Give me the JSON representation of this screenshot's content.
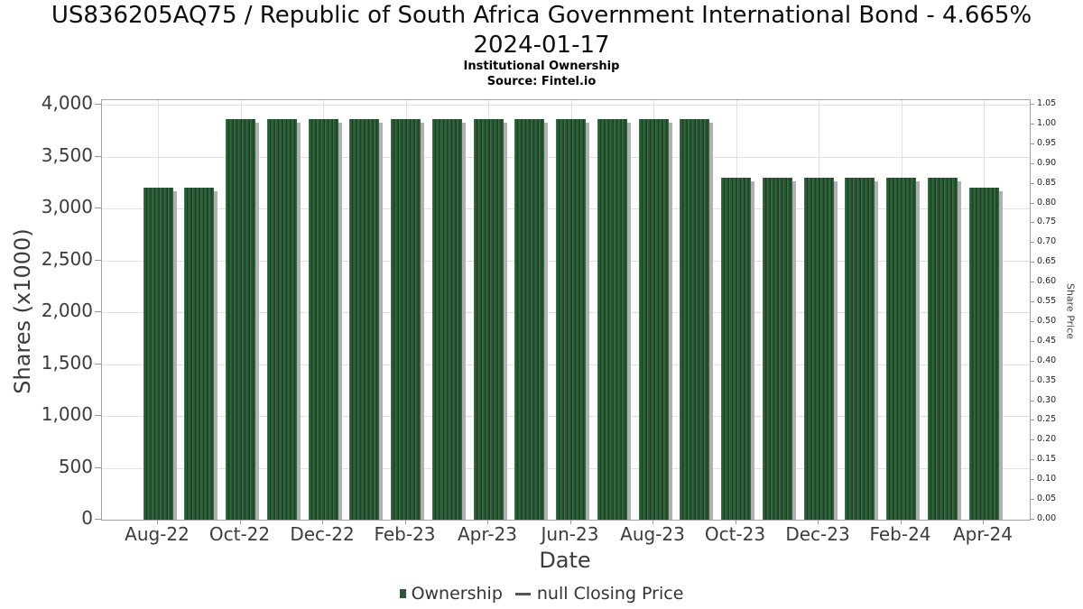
{
  "page": {
    "title_line1": "US836205AQ75 / Republic of South Africa Government International Bond - 4.665%",
    "title_line2": "2024-01-17",
    "subtitle": "Institutional Ownership",
    "source": "Source: Fintel.io"
  },
  "chart_data": {
    "type": "bar",
    "title": "US836205AQ75 / Republic of South Africa Government International Bond - 4.665% 2024-01-17",
    "subtitle": "Institutional Ownership",
    "source": "Source: Fintel.io",
    "xlabel": "Date",
    "ylabel_left": "Shares (x1000)",
    "ylabel_right": "Share Price",
    "categories": [
      "Aug-22",
      "Sep-22",
      "Oct-22",
      "Nov-22",
      "Dec-22",
      "Jan-23",
      "Feb-23",
      "Mar-23",
      "Apr-23",
      "May-23",
      "Jun-23",
      "Jul-23",
      "Aug-23",
      "Sep-23",
      "Oct-23",
      "Nov-23",
      "Dec-23",
      "Jan-24",
      "Feb-24",
      "Mar-24",
      "Apr-24"
    ],
    "series": [
      {
        "name": "Ownership",
        "values": [
          3200,
          3200,
          3860,
          3860,
          3860,
          3860,
          3860,
          3860,
          3860,
          3860,
          3860,
          3860,
          3860,
          3860,
          3300,
          3300,
          3300,
          3300,
          3300,
          3300,
          3200
        ]
      },
      {
        "name": "null Closing Price",
        "values": []
      }
    ],
    "ylim_left": [
      0,
      4000
    ],
    "ylim_right": [
      0,
      1.05
    ],
    "grid": true,
    "y_left_ticks": [
      {
        "value": 0,
        "label": "0"
      },
      {
        "value": 500,
        "label": "500"
      },
      {
        "value": 1000,
        "label": "1,000"
      },
      {
        "value": 1500,
        "label": "1,500"
      },
      {
        "value": 2000,
        "label": "2,000"
      },
      {
        "value": 2500,
        "label": "2,500"
      },
      {
        "value": 3000,
        "label": "3,000"
      },
      {
        "value": 3500,
        "label": "3,500"
      },
      {
        "value": 4000,
        "label": "4,000"
      }
    ],
    "y_right_tick_labels": [
      "0.00",
      "0.05",
      "0.10",
      "0.15",
      "0.20",
      "0.25",
      "0.30",
      "0.35",
      "0.40",
      "0.45",
      "0.50",
      "0.55",
      "0.60",
      "0.65",
      "0.70",
      "0.75",
      "0.80",
      "0.85",
      "0.90",
      "0.95",
      "1.00",
      "1.05"
    ],
    "x_ticks": [
      {
        "category_index": 0,
        "label": "Aug-22"
      },
      {
        "category_index": 2,
        "label": "Oct-22"
      },
      {
        "category_index": 4,
        "label": "Dec-22"
      },
      {
        "category_index": 6,
        "label": "Feb-23"
      },
      {
        "category_index": 8,
        "label": "Apr-23"
      },
      {
        "category_index": 10,
        "label": "Jun-23"
      },
      {
        "category_index": 12,
        "label": "Aug-23"
      },
      {
        "category_index": 14,
        "label": "Oct-23"
      },
      {
        "category_index": 16,
        "label": "Dec-23"
      },
      {
        "category_index": 18,
        "label": "Feb-24"
      },
      {
        "category_index": 20,
        "label": "Apr-24"
      }
    ],
    "legend": {
      "position": "bottom",
      "items": [
        {
          "label": "Ownership",
          "marker": "square",
          "color": "#2a5a36"
        },
        {
          "label": "null Closing Price",
          "marker": "line",
          "color": "#555555"
        }
      ]
    },
    "colors": {
      "bar": "#2a5a36",
      "bar_stripe_light": "#3a6f47",
      "bar_stripe_dark": "#1a4023",
      "bar_shadow": "#b0b0b0",
      "grid": "#e2e2e2",
      "axis_border": "#a3a3a3",
      "tick": "#999999"
    }
  }
}
